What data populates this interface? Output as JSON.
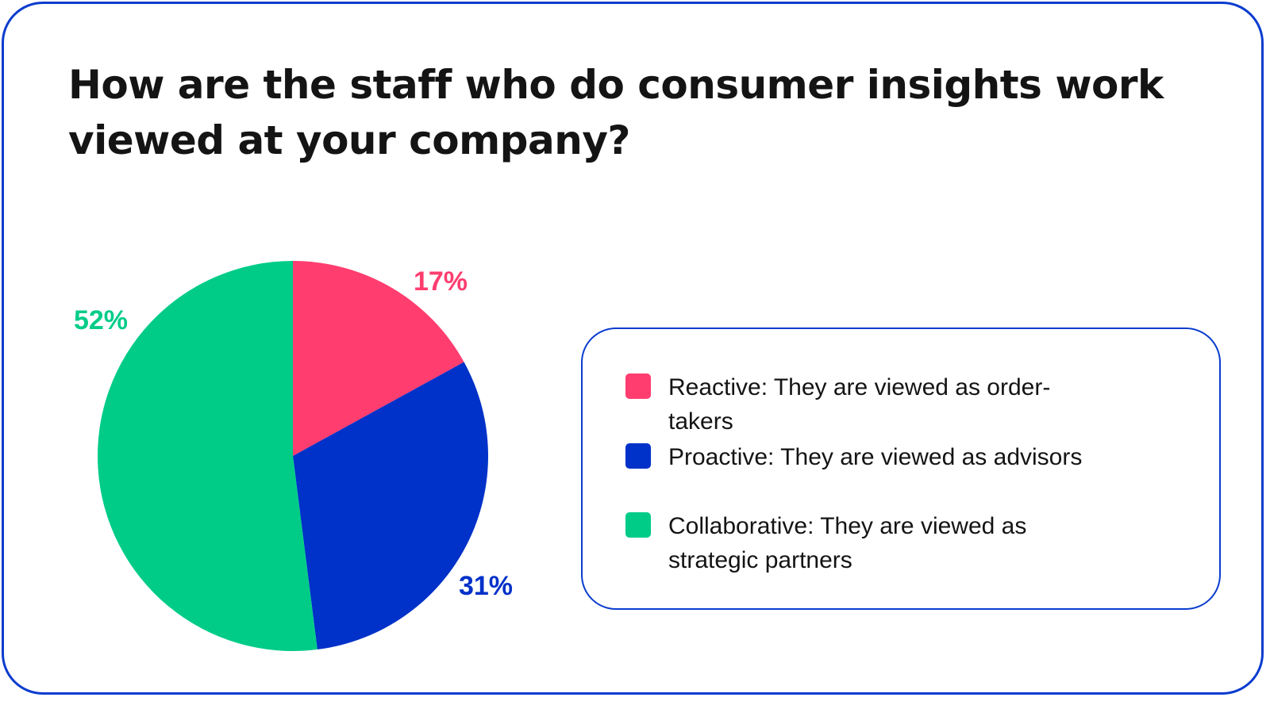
{
  "title": "How are the staff who do consumer insights work viewed at your company?",
  "legend": {
    "items": [
      {
        "label": "Reactive: They are viewed as order-takers",
        "color": "#ff3d6f"
      },
      {
        "label": "Proactive: They are viewed as advisors",
        "color": "#0031c8"
      },
      {
        "label": "Collaborative: They are viewed as strategic partners",
        "color": "#00cc88"
      }
    ]
  },
  "chart_data": {
    "type": "pie",
    "title": "How are the staff who do consumer insights work viewed at your company?",
    "categories": [
      "Reactive: They are viewed as order-takers",
      "Proactive: They are viewed as advisors",
      "Collaborative: They are viewed as strategic partners"
    ],
    "values": [
      17,
      31,
      52
    ],
    "labels": [
      "17%",
      "31%",
      "52%"
    ],
    "colors": [
      "#ff3d6f",
      "#0031c8",
      "#00cc88"
    ],
    "legend_position": "right"
  }
}
